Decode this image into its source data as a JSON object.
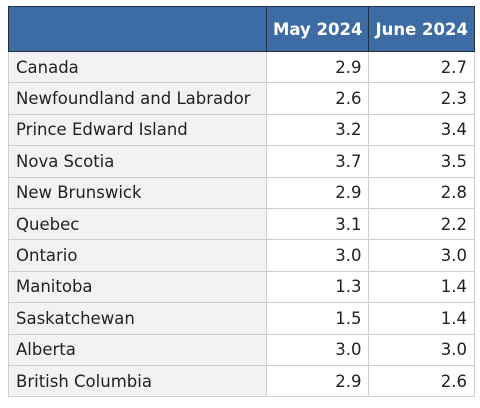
{
  "table": {
    "header": [
      "May 2024",
      "June 2024"
    ],
    "rows": [
      [
        "Canada",
        "2.9",
        "2.7"
      ],
      [
        "Newfoundland and Labrador",
        "2.6",
        "2.3"
      ],
      [
        "Prince Edward Island",
        "3.2",
        "3.4"
      ],
      [
        "Nova Scotia",
        "3.7",
        "3.5"
      ],
      [
        "New Brunswick",
        "2.9",
        "2.8"
      ],
      [
        "Quebec",
        "3.1",
        "2.2"
      ],
      [
        "Ontario",
        "3.0",
        "3.0"
      ],
      [
        "Manitoba",
        "1.3",
        "1.4"
      ],
      [
        "Saskatchewan",
        "1.5",
        "1.4"
      ],
      [
        "Alberta",
        "3.0",
        "3.0"
      ],
      [
        "British Columbia",
        "2.9",
        "2.6"
      ]
    ]
  }
}
